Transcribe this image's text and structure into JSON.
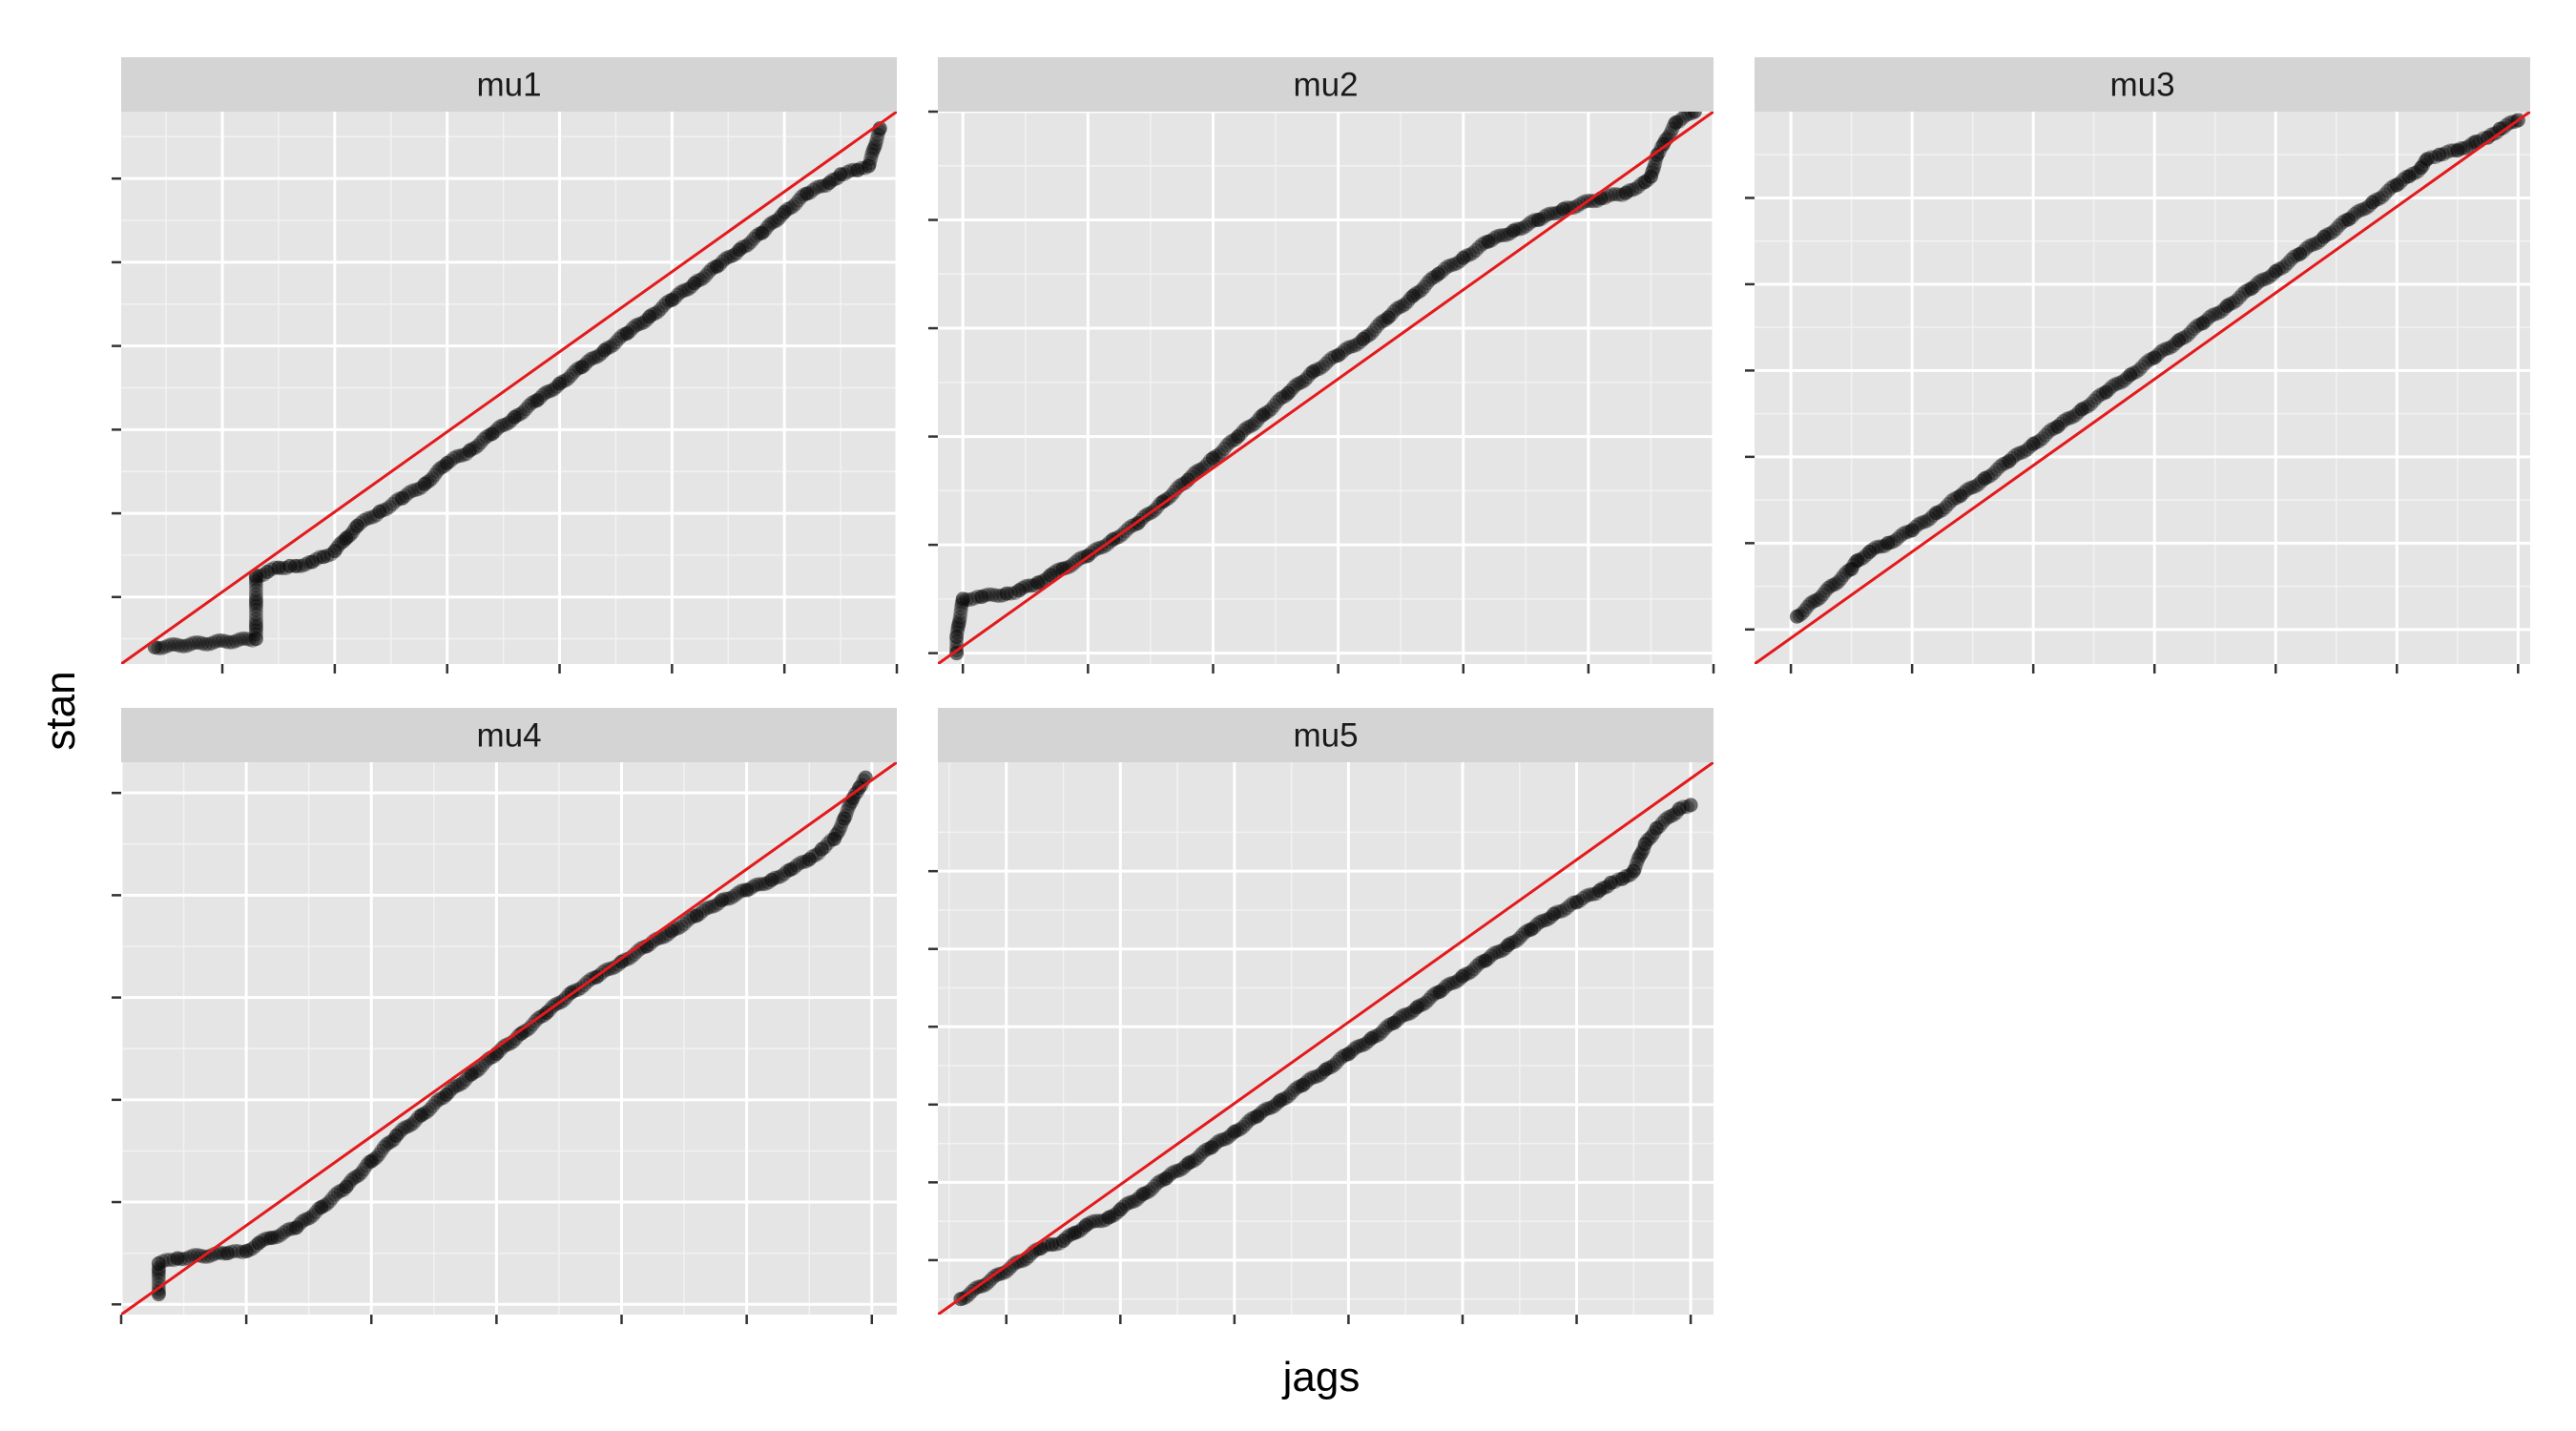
{
  "chart_data": {
    "type": "scatter",
    "xlabel": "jags",
    "ylabel": "stan",
    "grid": true,
    "reference_line": {
      "slope": 1,
      "intercept": 0,
      "color": "#e31a1c"
    },
    "point_color": "#000000",
    "point_alpha": 0.55,
    "panels": [
      {
        "name": "mu1",
        "xlim": [
          -3.9,
          3.0
        ],
        "ylim": [
          -3.8,
          2.8
        ],
        "x_breaks": [
          -3,
          -2,
          -1,
          0,
          1,
          2,
          3
        ],
        "y_breaks": [
          -3,
          -2,
          -1,
          0,
          1,
          2
        ],
        "points": [
          [
            -3.6,
            -3.6
          ],
          [
            -2.7,
            -3.5
          ],
          [
            -2.7,
            -2.75
          ],
          [
            -2.6,
            -2.7
          ],
          [
            -2.5,
            -2.65
          ],
          [
            -2.4,
            -2.63
          ],
          [
            -2.35,
            -2.63
          ],
          [
            -2.2,
            -2.58
          ],
          [
            -2.1,
            -2.52
          ],
          [
            -2.0,
            -2.45
          ],
          [
            -1.9,
            -2.3
          ],
          [
            -1.8,
            -2.15
          ],
          [
            -1.6,
            -1.98
          ],
          [
            -1.4,
            -1.82
          ],
          [
            -1.2,
            -1.65
          ],
          [
            -1.0,
            -1.4
          ],
          [
            -0.8,
            -1.25
          ],
          [
            -0.6,
            -1.05
          ],
          [
            -0.4,
            -0.85
          ],
          [
            -0.2,
            -0.65
          ],
          [
            0.0,
            -0.45
          ],
          [
            0.2,
            -0.25
          ],
          [
            0.4,
            -0.05
          ],
          [
            0.6,
            0.15
          ],
          [
            0.8,
            0.35
          ],
          [
            1.0,
            0.55
          ],
          [
            1.2,
            0.75
          ],
          [
            1.4,
            0.95
          ],
          [
            1.6,
            1.15
          ],
          [
            1.8,
            1.35
          ],
          [
            2.0,
            1.6
          ],
          [
            2.2,
            1.82
          ],
          [
            2.4,
            1.95
          ],
          [
            2.5,
            2.05
          ],
          [
            2.65,
            2.1
          ],
          [
            2.75,
            2.15
          ],
          [
            2.85,
            2.6
          ]
        ],
        "ref_points": [
          [
            -3.9,
            -3.8
          ],
          [
            3.0,
            2.8
          ]
        ]
      },
      {
        "name": "mu2",
        "xlim": [
          -3.2,
          3.0
        ],
        "ylim": [
          -3.1,
          2.0
        ],
        "x_breaks": [
          -3,
          -2,
          -1,
          0,
          1,
          2,
          3
        ],
        "y_breaks": [
          -3,
          -2,
          -1,
          0,
          1,
          2
        ],
        "points": [
          [
            -3.05,
            -3.0
          ],
          [
            -3.05,
            -2.85
          ],
          [
            -3.0,
            -2.5
          ],
          [
            -2.85,
            -2.48
          ],
          [
            -2.65,
            -2.45
          ],
          [
            -2.55,
            -2.42
          ],
          [
            -2.4,
            -2.35
          ],
          [
            -2.3,
            -2.28
          ],
          [
            -2.2,
            -2.22
          ],
          [
            -2.0,
            -2.1
          ],
          [
            -1.8,
            -1.95
          ],
          [
            -1.6,
            -1.8
          ],
          [
            -1.4,
            -1.6
          ],
          [
            -1.2,
            -1.4
          ],
          [
            -1.0,
            -1.2
          ],
          [
            -0.8,
            -1.0
          ],
          [
            -0.6,
            -0.8
          ],
          [
            -0.4,
            -0.6
          ],
          [
            -0.2,
            -0.4
          ],
          [
            0.0,
            -0.25
          ],
          [
            0.2,
            -0.1
          ],
          [
            0.4,
            0.1
          ],
          [
            0.6,
            0.3
          ],
          [
            0.8,
            0.5
          ],
          [
            1.0,
            0.65
          ],
          [
            1.2,
            0.8
          ],
          [
            1.4,
            0.9
          ],
          [
            1.6,
            1.0
          ],
          [
            1.8,
            1.1
          ],
          [
            2.1,
            1.2
          ],
          [
            2.3,
            1.25
          ],
          [
            2.45,
            1.35
          ],
          [
            2.5,
            1.4
          ],
          [
            2.55,
            1.6
          ],
          [
            2.6,
            1.7
          ],
          [
            2.7,
            1.9
          ],
          [
            2.85,
            2.0
          ]
        ],
        "ref_points": [
          [
            -3.2,
            -3.1
          ],
          [
            3.0,
            2.0
          ]
        ]
      },
      {
        "name": "mu3",
        "xlim": [
          -3.3,
          3.1
        ],
        "ylim": [
          -3.4,
          3.0
        ],
        "x_breaks": [
          -3,
          -2,
          -1,
          0,
          1,
          2,
          3
        ],
        "y_breaks": [
          -3,
          -2,
          -1,
          0,
          1,
          2
        ],
        "points": [
          [
            -2.95,
            -2.85
          ],
          [
            -2.5,
            -2.3
          ],
          [
            -2.45,
            -2.2
          ],
          [
            -2.35,
            -2.1
          ],
          [
            -2.2,
            -2.0
          ],
          [
            -2.0,
            -1.85
          ],
          [
            -1.8,
            -1.65
          ],
          [
            -1.6,
            -1.45
          ],
          [
            -1.4,
            -1.25
          ],
          [
            -1.2,
            -1.05
          ],
          [
            -1.0,
            -0.85
          ],
          [
            -0.8,
            -0.65
          ],
          [
            -0.6,
            -0.45
          ],
          [
            -0.4,
            -0.25
          ],
          [
            -0.2,
            -0.05
          ],
          [
            0.0,
            0.15
          ],
          [
            0.2,
            0.35
          ],
          [
            0.4,
            0.55
          ],
          [
            0.6,
            0.75
          ],
          [
            0.8,
            0.95
          ],
          [
            1.0,
            1.15
          ],
          [
            1.2,
            1.35
          ],
          [
            1.4,
            1.55
          ],
          [
            1.6,
            1.75
          ],
          [
            1.8,
            1.95
          ],
          [
            2.0,
            2.15
          ],
          [
            2.1,
            2.25
          ],
          [
            2.2,
            2.35
          ],
          [
            2.25,
            2.45
          ],
          [
            2.35,
            2.5
          ],
          [
            2.5,
            2.55
          ],
          [
            2.65,
            2.65
          ],
          [
            2.75,
            2.7
          ],
          [
            2.85,
            2.8
          ],
          [
            3.0,
            2.9
          ]
        ],
        "ref_points": [
          [
            -3.3,
            -3.4
          ],
          [
            3.1,
            3.0
          ]
        ]
      },
      {
        "name": "mu4",
        "xlim": [
          -3.0,
          3.2
        ],
        "ylim": [
          -3.1,
          2.3
        ],
        "x_breaks": [
          -3,
          -2,
          -1,
          0,
          1,
          2,
          3
        ],
        "y_breaks": [
          -3,
          -2,
          -1,
          0,
          1,
          2
        ],
        "points": [
          [
            -2.7,
            -2.9
          ],
          [
            -2.7,
            -2.6
          ],
          [
            -2.55,
            -2.55
          ],
          [
            -2.15,
            -2.5
          ],
          [
            -2.0,
            -2.48
          ],
          [
            -1.9,
            -2.4
          ],
          [
            -1.8,
            -2.35
          ],
          [
            -1.6,
            -2.25
          ],
          [
            -1.4,
            -2.05
          ],
          [
            -1.2,
            -1.85
          ],
          [
            -1.0,
            -1.6
          ],
          [
            -0.8,
            -1.35
          ],
          [
            -0.6,
            -1.15
          ],
          [
            -0.4,
            -0.95
          ],
          [
            -0.2,
            -0.75
          ],
          [
            0.0,
            -0.55
          ],
          [
            0.2,
            -0.35
          ],
          [
            0.4,
            -0.15
          ],
          [
            0.6,
            0.05
          ],
          [
            0.8,
            0.2
          ],
          [
            1.0,
            0.35
          ],
          [
            1.2,
            0.5
          ],
          [
            1.4,
            0.65
          ],
          [
            1.6,
            0.8
          ],
          [
            1.8,
            0.95
          ],
          [
            2.0,
            1.05
          ],
          [
            2.2,
            1.15
          ],
          [
            2.35,
            1.25
          ],
          [
            2.5,
            1.35
          ],
          [
            2.6,
            1.45
          ],
          [
            2.7,
            1.55
          ],
          [
            2.78,
            1.75
          ],
          [
            2.85,
            1.95
          ],
          [
            2.9,
            2.05
          ],
          [
            2.95,
            2.15
          ]
        ],
        "ref_points": [
          [
            -3.0,
            -3.1
          ],
          [
            3.2,
            2.3
          ]
        ]
      },
      {
        "name": "mu5",
        "xlim": [
          -3.6,
          3.2
        ],
        "ylim": [
          -3.7,
          3.4
        ],
        "x_breaks": [
          -3,
          -2,
          -1,
          0,
          1,
          2,
          3
        ],
        "y_breaks": [
          -3,
          -2,
          -1,
          0,
          1,
          2
        ],
        "points": [
          [
            -3.4,
            -3.5
          ],
          [
            -2.7,
            -2.85
          ],
          [
            -2.6,
            -2.8
          ],
          [
            -2.5,
            -2.75
          ],
          [
            -2.4,
            -2.65
          ],
          [
            -2.3,
            -2.55
          ],
          [
            -2.1,
            -2.45
          ],
          [
            -2.0,
            -2.35
          ],
          [
            -1.8,
            -2.15
          ],
          [
            -1.6,
            -1.95
          ],
          [
            -1.4,
            -1.75
          ],
          [
            -1.2,
            -1.55
          ],
          [
            -1.0,
            -1.35
          ],
          [
            -0.8,
            -1.15
          ],
          [
            -0.6,
            -0.95
          ],
          [
            -0.4,
            -0.75
          ],
          [
            -0.2,
            -0.55
          ],
          [
            0.0,
            -0.35
          ],
          [
            0.2,
            -0.15
          ],
          [
            0.4,
            0.05
          ],
          [
            0.6,
            0.25
          ],
          [
            0.8,
            0.45
          ],
          [
            1.0,
            0.65
          ],
          [
            1.2,
            0.85
          ],
          [
            1.4,
            1.05
          ],
          [
            1.6,
            1.25
          ],
          [
            1.8,
            1.45
          ],
          [
            2.0,
            1.6
          ],
          [
            2.2,
            1.75
          ],
          [
            2.3,
            1.85
          ],
          [
            2.4,
            1.9
          ],
          [
            2.5,
            2.0
          ],
          [
            2.6,
            2.35
          ],
          [
            2.7,
            2.55
          ],
          [
            2.9,
            2.8
          ],
          [
            3.0,
            2.85
          ]
        ],
        "ref_points": [
          [
            -3.6,
            -3.7
          ],
          [
            3.2,
            3.4
          ]
        ]
      }
    ]
  }
}
